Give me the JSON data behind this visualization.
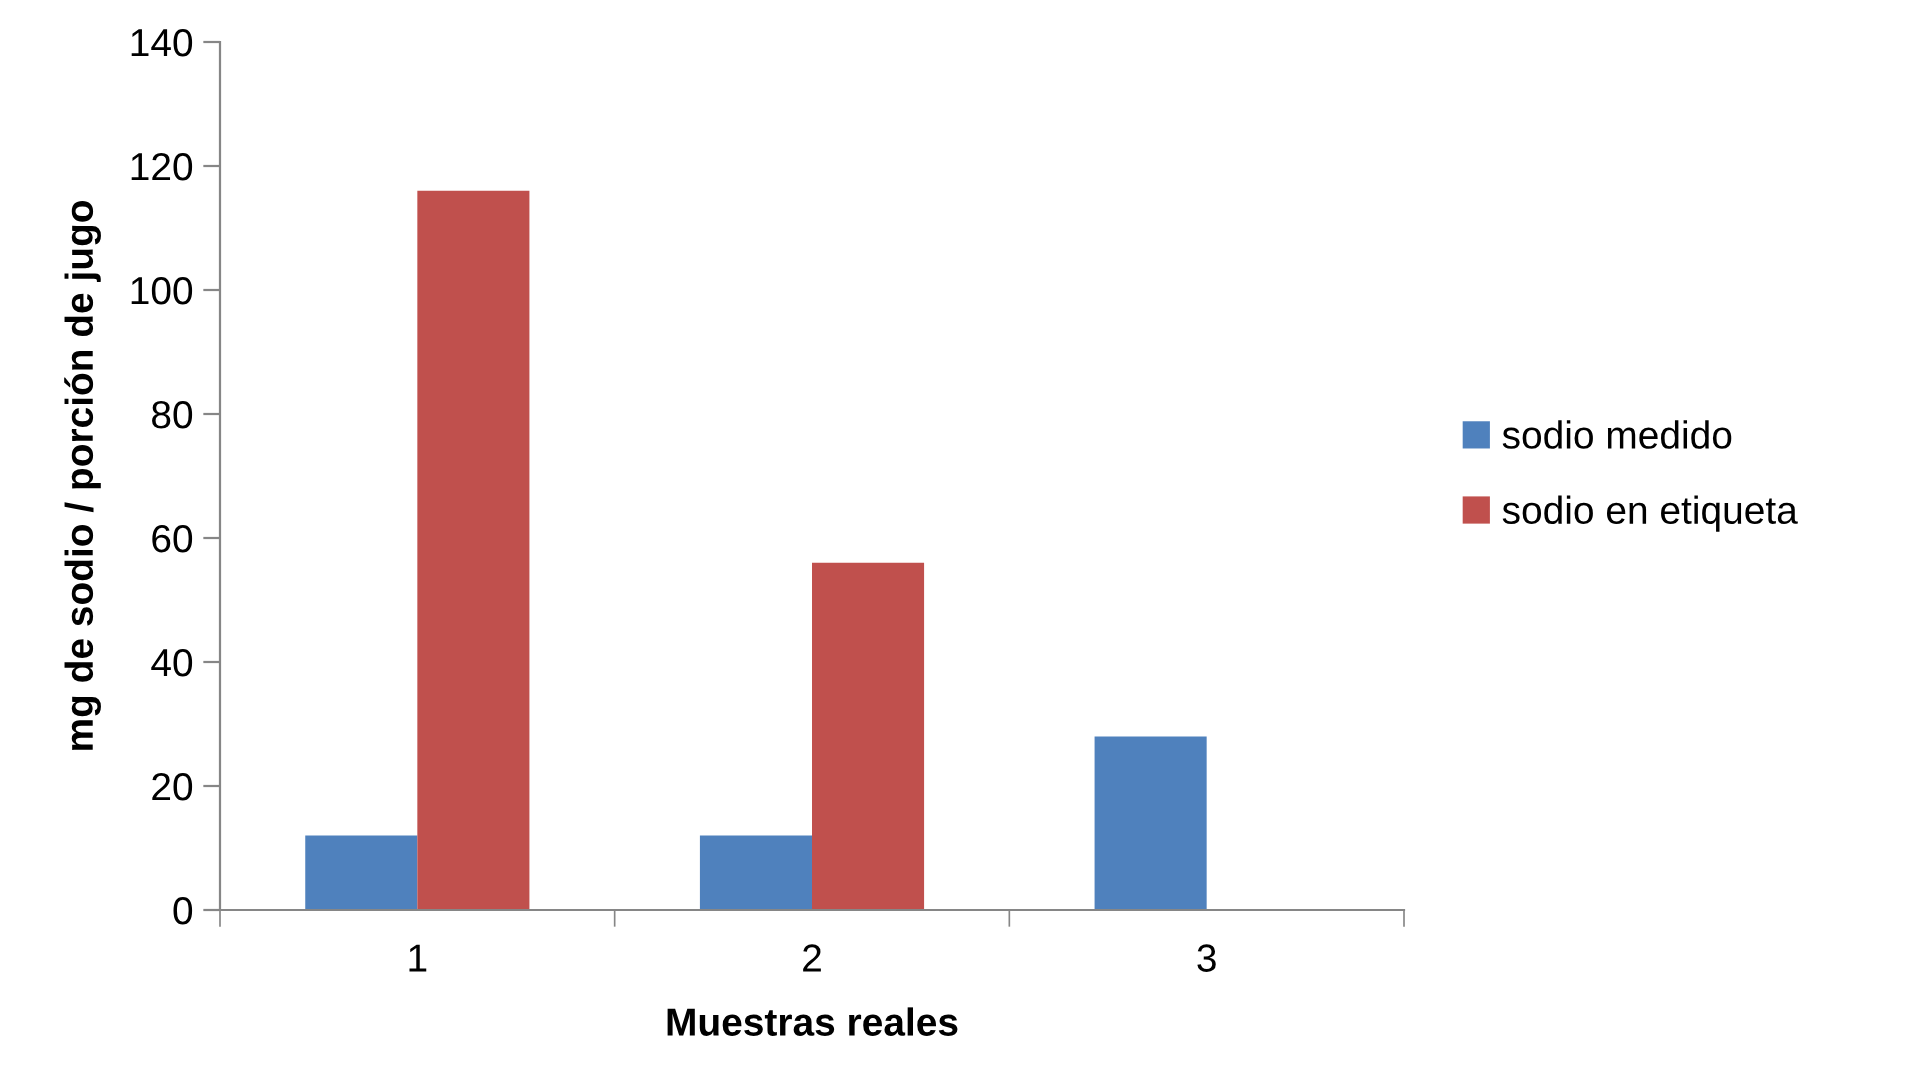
{
  "chart_data": {
    "type": "bar",
    "xlabel": "Muestras reales",
    "ylabel": "mg de sodio / porción de jugo",
    "categories": [
      "1",
      "2",
      "3"
    ],
    "series": [
      {
        "name": "sodio medido",
        "color": "#4f81bd",
        "values": [
          12,
          12,
          28
        ]
      },
      {
        "name": "sodio en etiqueta",
        "color": "#c0504d",
        "values": [
          116,
          56,
          null
        ]
      }
    ],
    "ylim": [
      0,
      140
    ],
    "yticks": [
      0,
      20,
      40,
      60,
      80,
      100,
      120,
      140
    ],
    "grid": false,
    "legend": "right"
  }
}
